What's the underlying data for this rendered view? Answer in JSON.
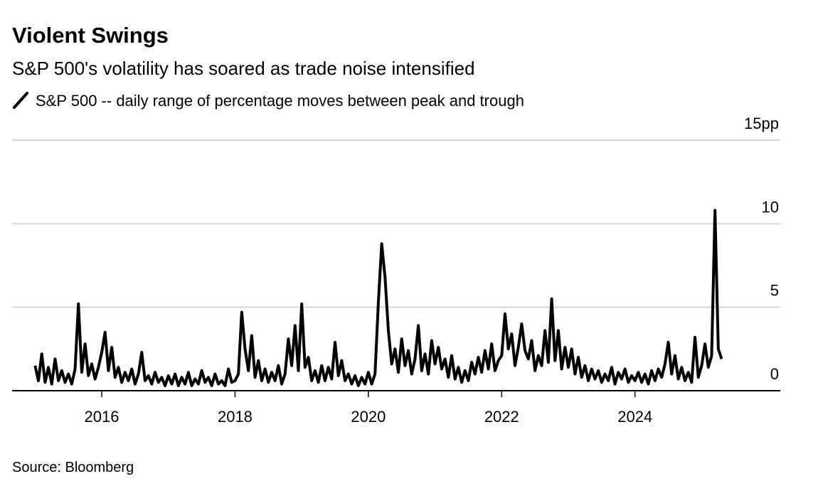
{
  "chart_data": {
    "type": "line",
    "title": "Violent Swings",
    "subtitle": "S&P 500's volatility has soared as trade noise intensified",
    "source": "Source: Bloomberg",
    "x": [
      2015,
      2015.05,
      2015.1,
      2015.15,
      2015.2,
      2015.25,
      2015.3,
      2015.35,
      2015.4,
      2015.45,
      2015.5,
      2015.55,
      2015.6,
      2015.65,
      2015.7,
      2015.75,
      2015.8,
      2015.85,
      2015.9,
      2015.95,
      2016,
      2016.05,
      2016.1,
      2016.15,
      2016.2,
      2016.25,
      2016.3,
      2016.35,
      2016.4,
      2016.45,
      2016.5,
      2016.55,
      2016.6,
      2016.65,
      2016.7,
      2016.75,
      2016.8,
      2016.85,
      2016.9,
      2016.95,
      2017,
      2017.05,
      2017.1,
      2017.15,
      2017.2,
      2017.25,
      2017.3,
      2017.35,
      2017.4,
      2017.45,
      2017.5,
      2017.55,
      2017.6,
      2017.65,
      2017.7,
      2017.75,
      2017.8,
      2017.85,
      2017.9,
      2017.95,
      2018,
      2018.05,
      2018.1,
      2018.15,
      2018.2,
      2018.25,
      2018.3,
      2018.35,
      2018.4,
      2018.45,
      2018.5,
      2018.55,
      2018.6,
      2018.65,
      2018.7,
      2018.75,
      2018.8,
      2018.85,
      2018.9,
      2018.95,
      2019,
      2019.05,
      2019.1,
      2019.15,
      2019.2,
      2019.25,
      2019.3,
      2019.35,
      2019.4,
      2019.45,
      2019.5,
      2019.55,
      2019.6,
      2019.65,
      2019.7,
      2019.75,
      2019.8,
      2019.85,
      2019.9,
      2019.95,
      2020,
      2020.05,
      2020.1,
      2020.15,
      2020.2,
      2020.25,
      2020.3,
      2020.35,
      2020.4,
      2020.45,
      2020.5,
      2020.55,
      2020.6,
      2020.65,
      2020.7,
      2020.75,
      2020.8,
      2020.85,
      2020.9,
      2020.95,
      2021,
      2021.05,
      2021.1,
      2021.15,
      2021.2,
      2021.25,
      2021.3,
      2021.35,
      2021.4,
      2021.45,
      2021.5,
      2021.55,
      2021.6,
      2021.65,
      2021.7,
      2021.75,
      2021.8,
      2021.85,
      2021.9,
      2021.95,
      2022,
      2022.05,
      2022.1,
      2022.15,
      2022.2,
      2022.25,
      2022.3,
      2022.35,
      2022.4,
      2022.45,
      2022.5,
      2022.55,
      2022.6,
      2022.65,
      2022.7,
      2022.75,
      2022.8,
      2022.85,
      2022.9,
      2022.95,
      2023,
      2023.05,
      2023.1,
      2023.15,
      2023.2,
      2023.25,
      2023.3,
      2023.35,
      2023.4,
      2023.45,
      2023.5,
      2023.55,
      2023.6,
      2023.65,
      2023.7,
      2023.75,
      2023.8,
      2023.85,
      2023.9,
      2023.95,
      2024,
      2024.05,
      2024.1,
      2024.15,
      2024.2,
      2024.25,
      2024.3,
      2024.35,
      2024.4,
      2024.45,
      2024.5,
      2024.55,
      2024.6,
      2024.65,
      2024.7,
      2024.75,
      2024.8,
      2024.85,
      2024.9,
      2024.95,
      2025,
      2025.05,
      2025.1,
      2025.15,
      2025.2,
      2025.25,
      2025.3
    ],
    "series": [
      {
        "name": "S&P 500 -- daily range of percentage moves between peak and trough",
        "color": "#000000",
        "values": [
          1.5,
          0.6,
          2.2,
          0.5,
          1.4,
          0.4,
          1.9,
          0.6,
          1.2,
          0.5,
          1.0,
          0.4,
          1.3,
          5.2,
          1.1,
          2.8,
          0.9,
          1.6,
          0.7,
          1.4,
          2.3,
          3.5,
          1.2,
          2.6,
          0.8,
          1.4,
          0.5,
          1.1,
          0.6,
          1.3,
          0.4,
          1.0,
          2.3,
          0.6,
          0.9,
          0.4,
          1.1,
          0.5,
          0.8,
          0.3,
          0.9,
          0.4,
          1.0,
          0.3,
          0.8,
          0.4,
          1.1,
          0.3,
          0.7,
          0.4,
          1.2,
          0.5,
          0.8,
          0.3,
          1.0,
          0.4,
          0.6,
          0.3,
          1.3,
          0.5,
          0.6,
          1.0,
          4.7,
          2.5,
          1.2,
          3.3,
          0.8,
          1.8,
          0.6,
          1.3,
          0.5,
          1.1,
          0.6,
          1.5,
          0.4,
          1.0,
          3.1,
          1.5,
          3.9,
          1.2,
          5.2,
          1.4,
          2.0,
          0.6,
          1.2,
          0.5,
          1.5,
          0.6,
          1.4,
          0.7,
          2.9,
          0.9,
          1.8,
          0.6,
          1.0,
          0.4,
          0.9,
          0.3,
          0.8,
          0.4,
          1.1,
          0.4,
          1.0,
          5.3,
          8.8,
          6.8,
          3.6,
          1.6,
          2.5,
          1.1,
          3.1,
          1.5,
          2.4,
          1.0,
          1.9,
          3.9,
          1.2,
          2.2,
          1.0,
          3.0,
          1.6,
          2.6,
          1.3,
          1.9,
          0.8,
          2.1,
          0.7,
          1.4,
          0.5,
          1.2,
          0.6,
          1.7,
          1.0,
          2.0,
          1.1,
          2.4,
          1.3,
          2.8,
          1.2,
          1.8,
          2.1,
          4.6,
          2.5,
          3.4,
          1.5,
          2.6,
          4.0,
          2.4,
          1.9,
          3.0,
          1.2,
          2.1,
          1.5,
          3.6,
          1.7,
          5.5,
          1.8,
          3.6,
          1.3,
          2.6,
          1.4,
          2.5,
          1.0,
          2.0,
          0.8,
          1.5,
          0.6,
          1.3,
          0.7,
          1.2,
          0.5,
          1.0,
          0.6,
          1.4,
          0.4,
          1.1,
          0.7,
          1.3,
          0.5,
          0.9,
          0.6,
          1.1,
          0.5,
          1.0,
          0.4,
          1.2,
          0.6,
          1.3,
          0.8,
          1.6,
          2.9,
          1.0,
          2.1,
          0.7,
          1.4,
          0.6,
          1.1,
          0.5,
          3.2,
          0.8,
          1.5,
          2.8,
          1.4,
          2.1,
          10.8,
          2.5,
          1.9
        ]
      }
    ],
    "xlim": [
      2014.655,
      2026.18
    ],
    "xticks": [
      2016,
      2018,
      2020,
      2022,
      2024
    ],
    "ylim": [
      0,
      15
    ],
    "yticks": [
      0,
      5,
      10,
      {
        "value": 15,
        "label": "15pp"
      }
    ],
    "grid": true
  }
}
